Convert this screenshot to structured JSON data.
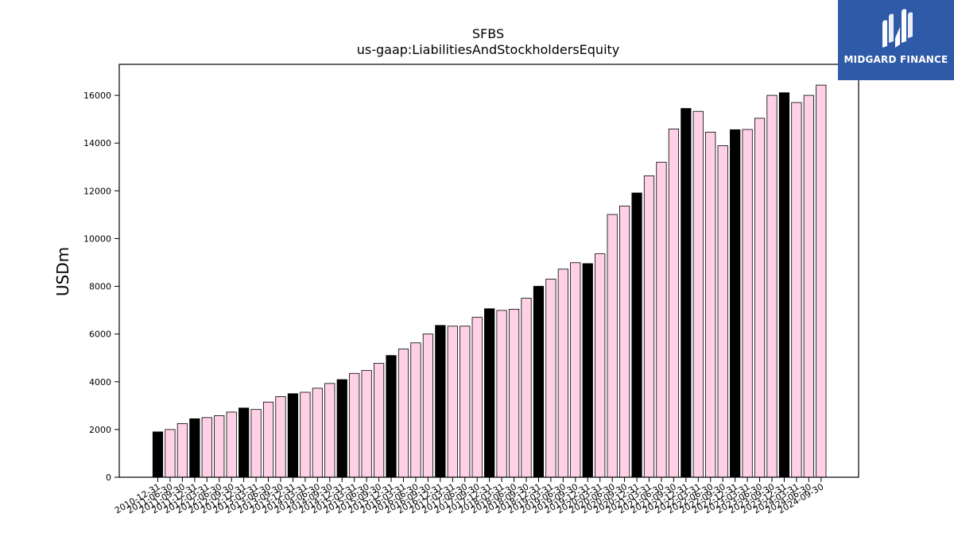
{
  "brand": {
    "name": "MIDGARD FINANCE",
    "colors": {
      "background": "#2f5aa8",
      "text": "#ffffff"
    },
    "icon": "midgard-logo-icon"
  },
  "colors": {
    "year_end_bar": "#000000",
    "quarter_bar": "#ffd0e6",
    "bar_edge": "#000000"
  },
  "chart_data": {
    "type": "bar",
    "title": "SFBS",
    "subtitle": "us-gaap:LiabilitiesAndStockholdersEquity",
    "xlabel": "",
    "ylabel": "USDm",
    "ylim": [
      0,
      17300
    ],
    "yticks": [
      0,
      2000,
      4000,
      6000,
      8000,
      10000,
      12000,
      14000,
      16000
    ],
    "grid": false,
    "categories": [
      "2010-12-31",
      "2011-06-30",
      "2011-09-30",
      "2011-12-31",
      "2012-03-31",
      "2012-06-30",
      "2012-09-30",
      "2012-12-31",
      "2013-03-31",
      "2013-06-30",
      "2013-09-30",
      "2013-12-31",
      "2014-03-31",
      "2014-06-30",
      "2014-09-30",
      "2014-12-31",
      "2015-03-31",
      "2015-06-30",
      "2015-09-30",
      "2015-12-31",
      "2016-03-31",
      "2016-06-30",
      "2016-09-30",
      "2016-12-31",
      "2017-03-31",
      "2017-06-30",
      "2017-09-30",
      "2017-12-31",
      "2018-03-31",
      "2018-06-30",
      "2018-09-30",
      "2018-12-31",
      "2019-03-31",
      "2019-06-30",
      "2019-09-30",
      "2019-12-31",
      "2020-03-31",
      "2020-06-30",
      "2020-09-30",
      "2020-12-31",
      "2021-03-31",
      "2021-06-30",
      "2021-09-30",
      "2021-12-31",
      "2022-03-31",
      "2022-06-30",
      "2022-09-30",
      "2022-12-31",
      "2023-03-31",
      "2023-06-30",
      "2023-09-30",
      "2023-12-31",
      "2024-03-31",
      "2024-06-30",
      "2024-09-30"
    ],
    "values": [
      1900,
      2000,
      2250,
      2450,
      2500,
      2580,
      2730,
      2900,
      2840,
      3150,
      3380,
      3500,
      3560,
      3730,
      3930,
      4090,
      4350,
      4470,
      4770,
      5100,
      5370,
      5630,
      6000,
      6360,
      6330,
      6330,
      6700,
      7060,
      6990,
      7040,
      7500,
      8000,
      8300,
      8720,
      8990,
      8950,
      9360,
      11010,
      11360,
      11910,
      12630,
      13200,
      14590,
      15450,
      15330,
      14460,
      13890,
      14560,
      14570,
      15040,
      16000,
      16110,
      15700,
      16000,
      16430
    ]
  }
}
